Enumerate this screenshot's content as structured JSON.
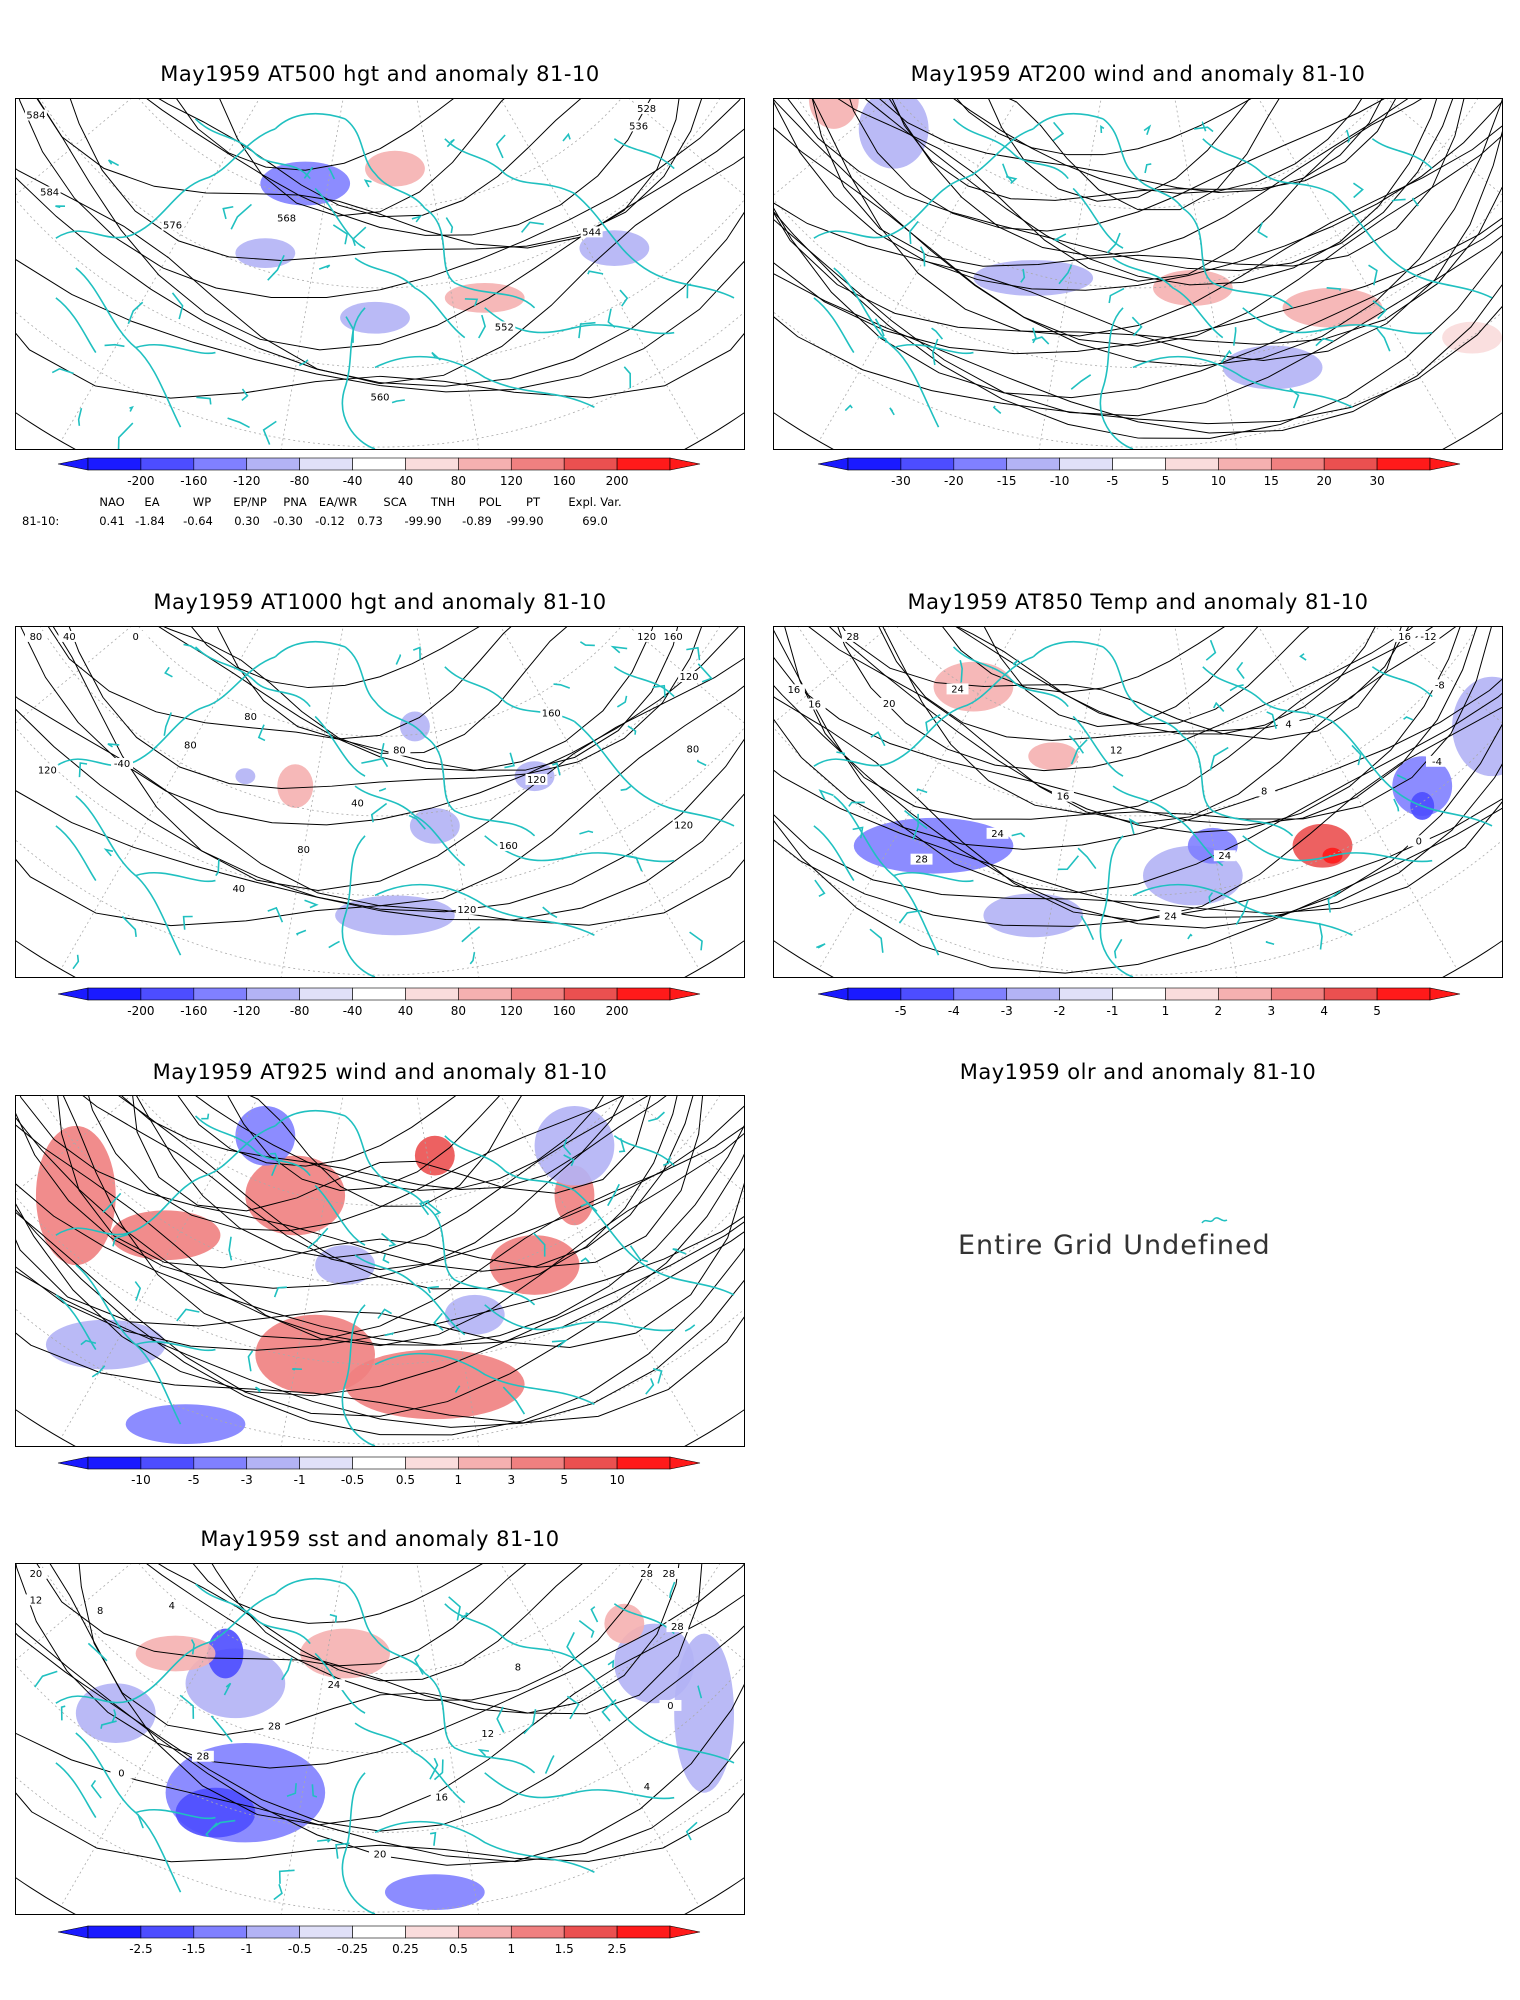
{
  "panels": [
    {
      "id": "at500",
      "title": "May1959 AT500 hgt and anomaly 81-10",
      "colorbar": [
        "-200",
        "-160",
        "-120",
        "-80",
        "-40",
        "40",
        "80",
        "120",
        "160",
        "200"
      ],
      "contour_labels": [
        "528",
        "536",
        "544",
        "552",
        "560",
        "568",
        "576",
        "584",
        "584"
      ]
    },
    {
      "id": "at200",
      "title": "May1959 AT200 wind and anomaly 81-10",
      "colorbar": [
        "-30",
        "-20",
        "-15",
        "-10",
        "-5",
        "5",
        "10",
        "15",
        "20",
        "30"
      ],
      "contour_labels": []
    },
    {
      "id": "at1000",
      "title": "May1959 AT1000 hgt and anomaly 81-10",
      "colorbar": [
        "-200",
        "-160",
        "-120",
        "-80",
        "-40",
        "40",
        "80",
        "120",
        "160",
        "200"
      ],
      "contour_labels": [
        "120",
        "160",
        "120",
        "80",
        "120",
        "160",
        "120",
        "160",
        "120",
        "80",
        "40",
        "80",
        "40",
        "80",
        "80",
        "-40",
        "120",
        "0",
        "40",
        "80"
      ]
    },
    {
      "id": "at850",
      "title": "May1959 AT850 Temp and anomaly 81-10",
      "colorbar": [
        "-5",
        "-4",
        "-3",
        "-2",
        "-1",
        "1",
        "2",
        "3",
        "4",
        "5"
      ],
      "contour_labels": [
        "16",
        "-12",
        "-8",
        "-4",
        "0",
        "4",
        "8",
        "24",
        "24",
        "12",
        "16",
        "24",
        "28",
        "24",
        "20",
        "16",
        "16",
        "28"
      ]
    },
    {
      "id": "at925",
      "title": "May1959 AT925 wind and anomaly 81-10",
      "colorbar": [
        "-10",
        "-5",
        "-3",
        "-1",
        "-0.5",
        "0.5",
        "1",
        "3",
        "5",
        "10"
      ],
      "contour_labels": []
    },
    {
      "id": "olr",
      "title": "May1959 olr and anomaly 81-10",
      "message": "Entire Grid Undefined"
    },
    {
      "id": "sst",
      "title": "May1959 sst and anomaly 81-10",
      "colorbar": [
        "-2.5",
        "-1.5",
        "-1",
        "-0.5",
        "-0.25",
        "0.25",
        "0.5",
        "1",
        "1.5",
        "2.5"
      ],
      "contour_labels": [
        "28",
        "28",
        "28",
        "0",
        "4",
        "8",
        "12",
        "16",
        "20",
        "24",
        "28",
        "28",
        "0",
        "4",
        "8",
        "12",
        "20"
      ]
    }
  ],
  "teleconnections": {
    "row_label": "81-10:",
    "headers": [
      "NAO",
      "EA",
      "WP",
      "EP/NP",
      "PNA",
      "EA/WR",
      "SCA",
      "TNH",
      "POL",
      "PT",
      "Expl. Var."
    ],
    "values": [
      "0.41",
      "-1.84",
      "-0.64",
      "0.30",
      "-0.30",
      "-0.12",
      "0.73",
      "-99.90",
      "-0.89",
      "-99.90",
      "69.0"
    ]
  },
  "colors": {
    "coastline": "#20c0c0",
    "grid": "#aaaaaa",
    "contour": "#000000",
    "neg": [
      "#1a1aff",
      "#4d4dff",
      "#8080ff",
      "#b3b3f5",
      "#e0e0f8"
    ],
    "pos": [
      "#fadcdc",
      "#f5b0b0",
      "#f08080",
      "#eb5050",
      "#ff1a1a"
    ]
  }
}
